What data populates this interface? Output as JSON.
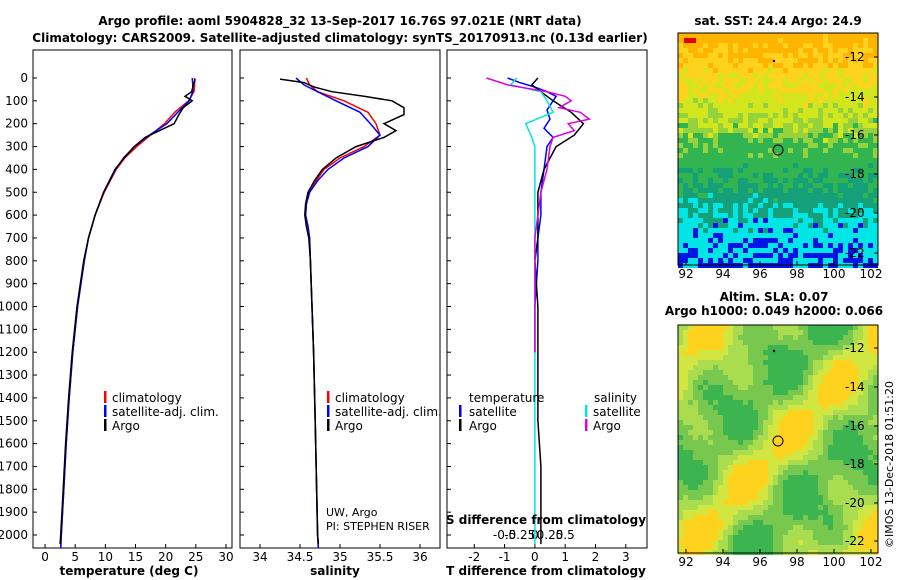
{
  "title_line1": "Argo profile: aoml 5904828_32 13-Sep-2017 16.76S 97.021E (NRT data)",
  "title_line2": "Climatology: CARS2009. Satellite-adjusted climatology: synTS_20170913.nc (0.13d earlier)",
  "side_stamp": "©IMOS 13-Dec-2018 01:51:20",
  "colors": {
    "climatology": "#ff0000",
    "satellite": "#0000ff",
    "argo": "#000000",
    "sat_salinity": "#00e5e5",
    "argo_salinity_diff": "#e000e0"
  },
  "depth_ticks": [
    "0",
    "100",
    "200",
    "300",
    "400",
    "500",
    "600",
    "700",
    "800",
    "900",
    "1000",
    "1100",
    "1200",
    "1300",
    "1400",
    "1500",
    "1600",
    "1700",
    "1800",
    "1900",
    "2000"
  ],
  "chart_data": [
    {
      "type": "line",
      "xlabel": "temperature (deg C)",
      "xlim": [
        -2,
        31
      ],
      "ylim": [
        2080,
        0
      ],
      "x_ticks": [
        "0",
        "5",
        "10",
        "15",
        "20",
        "25",
        "30"
      ],
      "legend": [
        "climatology",
        "satellite-adj. clim.",
        "Argo"
      ],
      "series": [
        {
          "name": "climatology",
          "color": "#ff0000",
          "depth": [
            0,
            30,
            60,
            100,
            150,
            200,
            250,
            300,
            350,
            400,
            500,
            600,
            700,
            800,
            1000,
            1200,
            1400,
            1600,
            1800,
            2000,
            2060
          ],
          "values": [
            24.8,
            24.8,
            24.7,
            23.8,
            21.5,
            19.8,
            17.5,
            15.2,
            13.2,
            11.8,
            9.8,
            8.3,
            7.2,
            6.5,
            5.4,
            4.6,
            4.0,
            3.5,
            3.1,
            2.7,
            2.6
          ]
        },
        {
          "name": "satellite-adj. clim.",
          "color": "#0000ff",
          "depth": [
            0,
            30,
            60,
            100,
            150,
            200,
            250,
            300,
            350,
            400,
            500,
            600,
            700,
            800,
            1000,
            1200,
            1400,
            1600,
            1800,
            2000,
            2060
          ],
          "values": [
            24.4,
            24.5,
            24.5,
            23.9,
            22.0,
            20.2,
            17.3,
            14.8,
            13.0,
            11.7,
            9.7,
            8.3,
            7.2,
            6.5,
            5.4,
            4.6,
            4.0,
            3.5,
            3.1,
            2.7,
            2.6
          ]
        },
        {
          "name": "Argo",
          "color": "#000000",
          "depth": [
            5,
            30,
            60,
            80,
            100,
            130,
            160,
            200,
            230,
            260,
            300,
            350,
            400,
            500,
            600,
            700,
            800,
            1000,
            1200,
            1400,
            1600,
            1800,
            2000,
            2040
          ],
          "values": [
            24.9,
            24.6,
            24.3,
            23.2,
            24.4,
            22.9,
            22.2,
            21.4,
            19.0,
            16.6,
            14.8,
            13.1,
            11.6,
            9.7,
            8.3,
            7.2,
            6.4,
            5.3,
            4.5,
            3.9,
            3.4,
            3.0,
            2.6,
            2.5
          ]
        }
      ]
    },
    {
      "type": "line",
      "xlabel": "salinity",
      "xlim": [
        33.75,
        36.25
      ],
      "ylim": [
        2080,
        0
      ],
      "x_ticks": [
        "34",
        "34.5",
        "35",
        "35.5",
        "36"
      ],
      "legend": [
        "climatology",
        "satellite-adj. clim.",
        "Argo"
      ],
      "annotation": [
        "UW, Argo",
        "PI: STEPHEN RISER"
      ],
      "series": [
        {
          "name": "climatology",
          "color": "#ff0000",
          "depth": [
            0,
            30,
            60,
            100,
            150,
            200,
            250,
            300,
            350,
            400,
            450,
            500,
            550,
            600,
            650,
            700,
            800,
            1000,
            1200,
            1500,
            2000,
            2060
          ],
          "values": [
            34.58,
            34.62,
            34.72,
            35.05,
            35.35,
            35.45,
            35.5,
            35.3,
            35.0,
            34.8,
            34.7,
            34.62,
            34.58,
            34.57,
            34.6,
            34.62,
            34.63,
            34.65,
            34.67,
            34.69,
            34.72,
            34.73
          ]
        },
        {
          "name": "satellite-adj. clim.",
          "color": "#0000ff",
          "depth": [
            0,
            30,
            60,
            100,
            150,
            200,
            250,
            300,
            350,
            400,
            450,
            500,
            550,
            600,
            650,
            700,
            800,
            1000,
            1200,
            1500,
            2000,
            2060
          ],
          "values": [
            34.45,
            34.55,
            34.72,
            34.95,
            35.25,
            35.38,
            35.5,
            35.35,
            35.05,
            34.85,
            34.72,
            34.62,
            34.58,
            34.57,
            34.6,
            34.62,
            34.63,
            34.65,
            34.67,
            34.69,
            34.72,
            34.73
          ]
        },
        {
          "name": "Argo",
          "color": "#000000",
          "depth": [
            5,
            20,
            40,
            60,
            80,
            100,
            130,
            160,
            200,
            230,
            260,
            300,
            350,
            400,
            450,
            500,
            550,
            600,
            650,
            700,
            800,
            1000,
            1200,
            1500,
            2000,
            2040
          ],
          "values": [
            34.25,
            34.55,
            34.68,
            34.9,
            35.3,
            35.65,
            35.8,
            35.8,
            35.55,
            35.7,
            35.55,
            35.2,
            34.95,
            34.78,
            34.68,
            34.6,
            34.57,
            34.56,
            34.58,
            34.61,
            34.63,
            34.65,
            34.67,
            34.69,
            34.72,
            34.73
          ]
        }
      ]
    },
    {
      "type": "line",
      "xlabel": "T difference from climatology",
      "top_label": "S difference from climatology",
      "xlim": [
        -2.9,
        3.7
      ],
      "ylim": [
        2080,
        0
      ],
      "x_ticks": [
        "-2",
        "-1",
        "0",
        "1",
        "2",
        "3"
      ],
      "top_ticks": [
        "-0.5",
        "-0.25",
        "0",
        "0.25",
        "0.5"
      ],
      "legend_left": [
        "temperature",
        "satellite",
        "Argo"
      ],
      "legend_right": [
        "salinity",
        "satellite",
        "Argo"
      ],
      "series": [
        {
          "name": "satellite",
          "color": "#0000ff",
          "depth": [
            0,
            20,
            40,
            60,
            80,
            100,
            140,
            180,
            220,
            260,
            300,
            400,
            500,
            600,
            700,
            800,
            1000,
            1200
          ],
          "values": [
            -0.9,
            -0.5,
            0,
            0.4,
            0.7,
            0.6,
            0.4,
            0.5,
            0.3,
            0.6,
            0.4,
            0.3,
            0.2,
            0.2,
            0.1,
            0.1,
            0,
            0
          ]
        },
        {
          "name": "Argo",
          "color": "#000000",
          "depth": [
            0,
            30,
            60,
            100,
            150,
            200,
            250,
            300,
            400,
            500,
            600,
            700,
            800,
            1000,
            1200,
            1500,
            1700,
            2000,
            2040
          ],
          "values": [
            0.1,
            -0.1,
            0.2,
            0.6,
            1.2,
            1.6,
            1.3,
            0.7,
            0.3,
            0.1,
            0.1,
            0.1,
            0,
            0.1,
            0.1,
            0.1,
            0.2,
            0.2,
            0.2
          ]
        },
        {
          "name": "satellite",
          "color": "#00e5e5",
          "depth": [
            0,
            30,
            60,
            100,
            150,
            200,
            260,
            300,
            400,
            500,
            600,
            700,
            800,
            1000,
            1500,
            2000,
            2040
          ],
          "values": [
            -0.6,
            -0.8,
            0.2,
            0.4,
            0.6,
            -0.3,
            -0.1,
            0,
            0,
            0,
            0,
            0,
            0,
            0,
            0,
            0,
            0
          ]
        },
        {
          "name": "Argo",
          "color": "#e000e0",
          "depth": [
            0,
            30,
            60,
            80,
            100,
            130,
            150,
            180,
            200,
            230,
            260,
            300,
            400,
            500,
            600,
            700,
            800,
            1000,
            1200
          ],
          "values": [
            -1.6,
            -0.9,
            0.4,
            1.0,
            1.2,
            0.8,
            1.5,
            1.8,
            1.1,
            1.3,
            0.6,
            0.5,
            0.4,
            0.2,
            0.1,
            0,
            0,
            0,
            0
          ]
        }
      ]
    }
  ],
  "map_sst": {
    "title": "sat. SST: 24.4 Argo: 24.9",
    "x_ticks": [
      "92",
      "94",
      "96",
      "98",
      "100",
      "102"
    ],
    "y_ticks": [
      "-12",
      "-14",
      "-16",
      "-18",
      "-20",
      "-22"
    ]
  },
  "map_sla": {
    "title_line1": "Altim. SLA: 0.07",
    "title_line2": "Argo h1000: 0.049 h2000: 0.066",
    "x_ticks": [
      "92",
      "94",
      "96",
      "98",
      "100",
      "102"
    ],
    "y_ticks": [
      "-12",
      "-14",
      "-16",
      "-18",
      "-20",
      "-22"
    ]
  }
}
